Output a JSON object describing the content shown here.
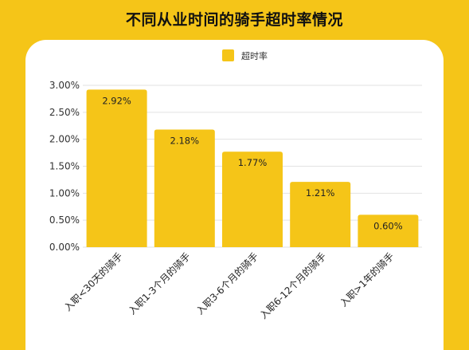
{
  "title": "不同从业时间的骑手超时率情况",
  "colors": {
    "background": "#F5C518",
    "bar": "#F5C518",
    "card": "#FFFFFF"
  },
  "chart_data": {
    "type": "bar",
    "title": "不同从业时间的骑手超时率情况",
    "categories": [
      "入职<30天的骑手",
      "入职1-3个月的骑手",
      "入职3-6个月的骑手",
      "入职6-12个月的骑手",
      "入职>1年的骑手"
    ],
    "series": [
      {
        "name": "超时率",
        "values": [
          2.92,
          2.18,
          1.77,
          1.21,
          0.6
        ]
      }
    ],
    "data_labels": [
      "2.92%",
      "2.18%",
      "1.77%",
      "1.21%",
      "0.60%"
    ],
    "y_ticks": [
      "0.00%",
      "0.50%",
      "1.00%",
      "1.50%",
      "2.00%",
      "2.50%",
      "3.00%"
    ],
    "ylim": [
      0,
      3.0
    ],
    "unit": "%",
    "grid": true,
    "legend": "top-center"
  }
}
